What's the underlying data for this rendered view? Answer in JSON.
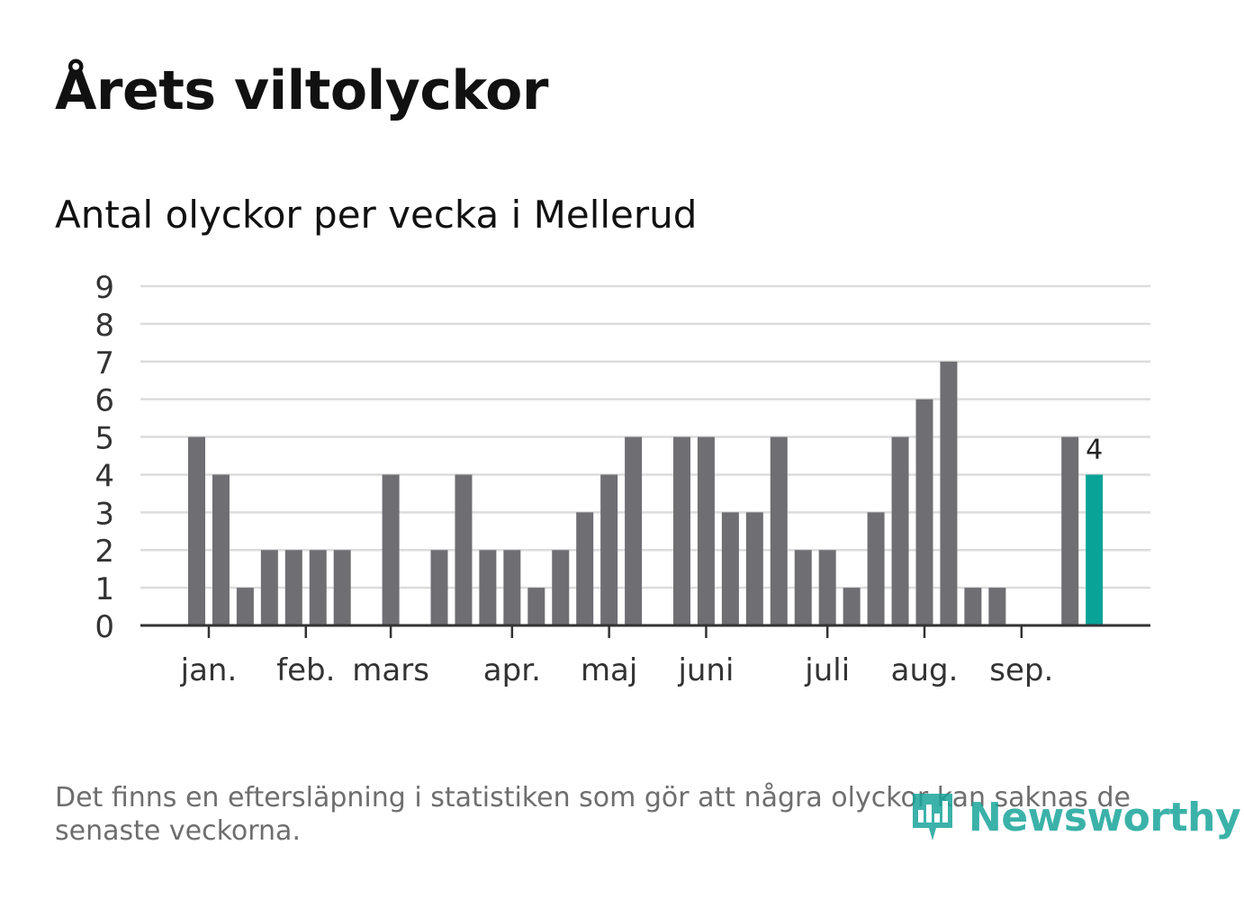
{
  "header": {
    "title": "Årets viltolyckor",
    "subtitle": "Antal olyckor per vecka i Mellerud"
  },
  "footer": {
    "note": "Det finns en eftersläpning i statistiken som gör att några olyckor kan saknas de senaste veckorna.",
    "brand": "Newsworthy"
  },
  "colors": {
    "bar": "#6f6e73",
    "highlight": "#0aa398",
    "grid": "#dcdcdc",
    "axis": "#333333",
    "text": "#333333",
    "brand": "#1aa59b"
  },
  "chart_data": {
    "type": "bar",
    "title": "Antal olyckor per vecka i Mellerud",
    "xlabel": "",
    "ylabel": "",
    "ylim": [
      0,
      9
    ],
    "yticks": [
      "0",
      "1",
      "2",
      "3",
      "4",
      "5",
      "6",
      "7",
      "8",
      "9"
    ],
    "grid": true,
    "weeks": [
      1,
      2,
      3,
      4,
      5,
      6,
      7,
      8,
      9,
      10,
      11,
      12,
      13,
      14,
      15,
      16,
      17,
      18,
      19,
      20,
      21,
      22,
      23,
      24,
      25,
      26,
      27,
      28,
      29,
      30,
      31,
      32,
      33,
      34,
      35,
      36,
      37,
      38
    ],
    "values": [
      5,
      4,
      1,
      2,
      2,
      2,
      2,
      0,
      4,
      0,
      2,
      4,
      2,
      2,
      1,
      2,
      3,
      4,
      5,
      0,
      5,
      5,
      3,
      3,
      5,
      2,
      2,
      1,
      3,
      5,
      6,
      7,
      1,
      1,
      0,
      0,
      5,
      4
    ],
    "highlight_index": 37,
    "highlight_label": "4",
    "month_labels": [
      {
        "label": "jan.",
        "week": 1.5
      },
      {
        "label": "feb.",
        "week": 5.5
      },
      {
        "label": "mars",
        "week": 9.0
      },
      {
        "label": "apr.",
        "week": 14.0
      },
      {
        "label": "maj",
        "week": 18.0
      },
      {
        "label": "juni",
        "week": 22.0
      },
      {
        "label": "juli",
        "week": 27.0
      },
      {
        "label": "aug.",
        "week": 31.0
      },
      {
        "label": "sep.",
        "week": 35.0
      }
    ]
  }
}
